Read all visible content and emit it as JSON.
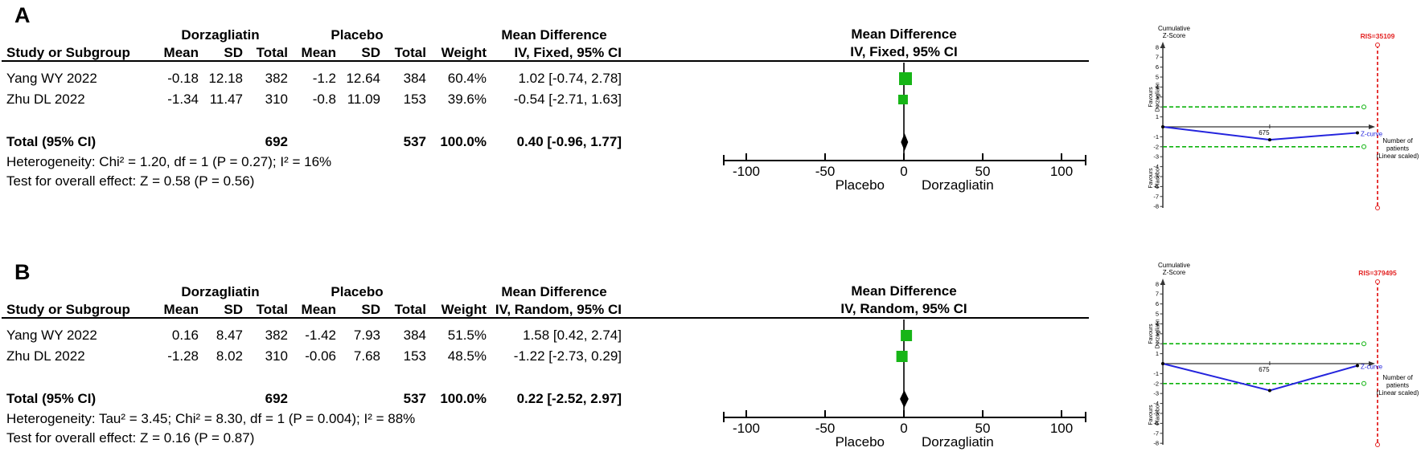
{
  "figure_title": "Forest plots and trial sequential analyses, Dorzagliatin vs Placebo",
  "colors": {
    "square_green": "#17b517",
    "boundary_green": "#0cb30c",
    "ris_red": "#e32222",
    "z_curve_blue": "#2424dd",
    "axis_black": "#000000",
    "tsa_axis_gray": "#333333"
  },
  "chart_data": [
    {
      "type": "forest",
      "panel": "A",
      "groups": [
        "Dorzagliatin",
        "Placebo"
      ],
      "effect_header": "Mean Difference",
      "model_header": "IV, Fixed, 95% CI",
      "columns": [
        "Study or Subgroup",
        "Mean",
        "SD",
        "Total",
        "Mean",
        "SD",
        "Total",
        "Weight"
      ],
      "studies": [
        {
          "study": "Yang WY 2022",
          "t_mean": "-0.18",
          "t_sd": "12.18",
          "t_total": "382",
          "c_mean": "-1.2",
          "c_sd": "12.64",
          "c_total": "384",
          "weight": "60.4%",
          "weight_pct": 60.4,
          "md": 1.02,
          "ci_low": -0.74,
          "ci_high": 2.78,
          "ci_text": "1.02 [-0.74, 2.78]"
        },
        {
          "study": "Zhu DL 2022",
          "t_mean": "-1.34",
          "t_sd": "11.47",
          "t_total": "310",
          "c_mean": "-0.8",
          "c_sd": "11.09",
          "c_total": "153",
          "weight": "39.6%",
          "weight_pct": 39.6,
          "md": -0.54,
          "ci_low": -2.71,
          "ci_high": 1.63,
          "ci_text": "-0.54 [-2.71, 1.63]"
        }
      ],
      "total": {
        "label": "Total (95% CI)",
        "t_total": "692",
        "c_total": "537",
        "weight": "100.0%",
        "md": 0.4,
        "ci_low": -0.96,
        "ci_high": 1.77,
        "ci_text": "0.40 [-0.96, 1.77]"
      },
      "heterogeneity": "Heterogeneity: Chi² = 1.20, df = 1 (P = 0.27); I² = 16%",
      "overall_effect": "Test for overall effect: Z = 0.58 (P = 0.56)",
      "axis": {
        "min": -100,
        "max": 100,
        "ticks": [
          -100,
          -50,
          0,
          50,
          100
        ],
        "favours_left": "Placebo",
        "favours_right": "Dorzagliatin"
      }
    },
    {
      "type": "line",
      "panel": "A",
      "subtype": "trial_sequential_analysis",
      "ylabel_lines": [
        "Cumulative",
        "Z-Score"
      ],
      "xlabel_lines": [
        "Number of",
        "patients",
        "(Linear scaled)"
      ],
      "curve_label": "Z-curve",
      "ris_label": "RIS=35109",
      "favours_top": [
        "Favours",
        "Dorzagliatin"
      ],
      "favours_bottom": [
        "Favours",
        "Placebo"
      ],
      "ylim": [
        -8,
        8
      ],
      "yticks": [
        8,
        7,
        6,
        5,
        4,
        3,
        2,
        1,
        -1,
        -2,
        -3,
        -4,
        -5,
        -6,
        -7,
        -8
      ],
      "significance_boundaries": [
        2,
        -2
      ],
      "x_mid_label": "675",
      "x_points": [
        0,
        675,
        1229
      ],
      "x_axis_max": 1280,
      "z_points": [
        0,
        -1.3,
        -0.6
      ]
    },
    {
      "type": "forest",
      "panel": "B",
      "groups": [
        "Dorzagliatin",
        "Placebo"
      ],
      "effect_header": "Mean Difference",
      "model_header": "IV, Random, 95% CI",
      "columns": [
        "Study or Subgroup",
        "Mean",
        "SD",
        "Total",
        "Mean",
        "SD",
        "Total",
        "Weight"
      ],
      "studies": [
        {
          "study": "Yang WY 2022",
          "t_mean": "0.16",
          "t_sd": "8.47",
          "t_total": "382",
          "c_mean": "-1.42",
          "c_sd": "7.93",
          "c_total": "384",
          "weight": "51.5%",
          "weight_pct": 51.5,
          "md": 1.58,
          "ci_low": 0.42,
          "ci_high": 2.74,
          "ci_text": "1.58 [0.42, 2.74]"
        },
        {
          "study": "Zhu DL 2022",
          "t_mean": "-1.28",
          "t_sd": "8.02",
          "t_total": "310",
          "c_mean": "-0.06",
          "c_sd": "7.68",
          "c_total": "153",
          "weight": "48.5%",
          "weight_pct": 48.5,
          "md": -1.22,
          "ci_low": -2.73,
          "ci_high": 0.29,
          "ci_text": "-1.22 [-2.73, 0.29]"
        }
      ],
      "total": {
        "label": "Total (95% CI)",
        "t_total": "692",
        "c_total": "537",
        "weight": "100.0%",
        "md": 0.22,
        "ci_low": -2.52,
        "ci_high": 2.97,
        "ci_text": "0.22 [-2.52, 2.97]"
      },
      "heterogeneity": "Heterogeneity: Tau² = 3.45; Chi² = 8.30, df = 1 (P = 0.004); I² = 88%",
      "overall_effect": "Test for overall effect: Z = 0.16 (P = 0.87)",
      "axis": {
        "min": -100,
        "max": 100,
        "ticks": [
          -100,
          -50,
          0,
          50,
          100
        ],
        "favours_left": "Placebo",
        "favours_right": "Dorzagliatin"
      }
    },
    {
      "type": "line",
      "panel": "B",
      "subtype": "trial_sequential_analysis",
      "ylabel_lines": [
        "Cumulative",
        "Z-Score"
      ],
      "xlabel_lines": [
        "Number of",
        "patients",
        "(Linear scaled)"
      ],
      "curve_label": "Z-curve",
      "ris_label": "RIS=379495",
      "favours_top": [
        "Favours",
        "Dorzagliatin"
      ],
      "favours_bottom": [
        "Favours",
        "Placebo"
      ],
      "ylim": [
        -8,
        8
      ],
      "yticks": [
        8,
        7,
        6,
        5,
        4,
        3,
        2,
        1,
        -1,
        -2,
        -3,
        -4,
        -5,
        -6,
        -7,
        -8
      ],
      "significance_boundaries": [
        2,
        -2
      ],
      "x_mid_label": "675",
      "x_points": [
        0,
        675,
        1229
      ],
      "x_axis_max": 1280,
      "z_points": [
        0,
        -2.7,
        -0.2
      ]
    }
  ]
}
